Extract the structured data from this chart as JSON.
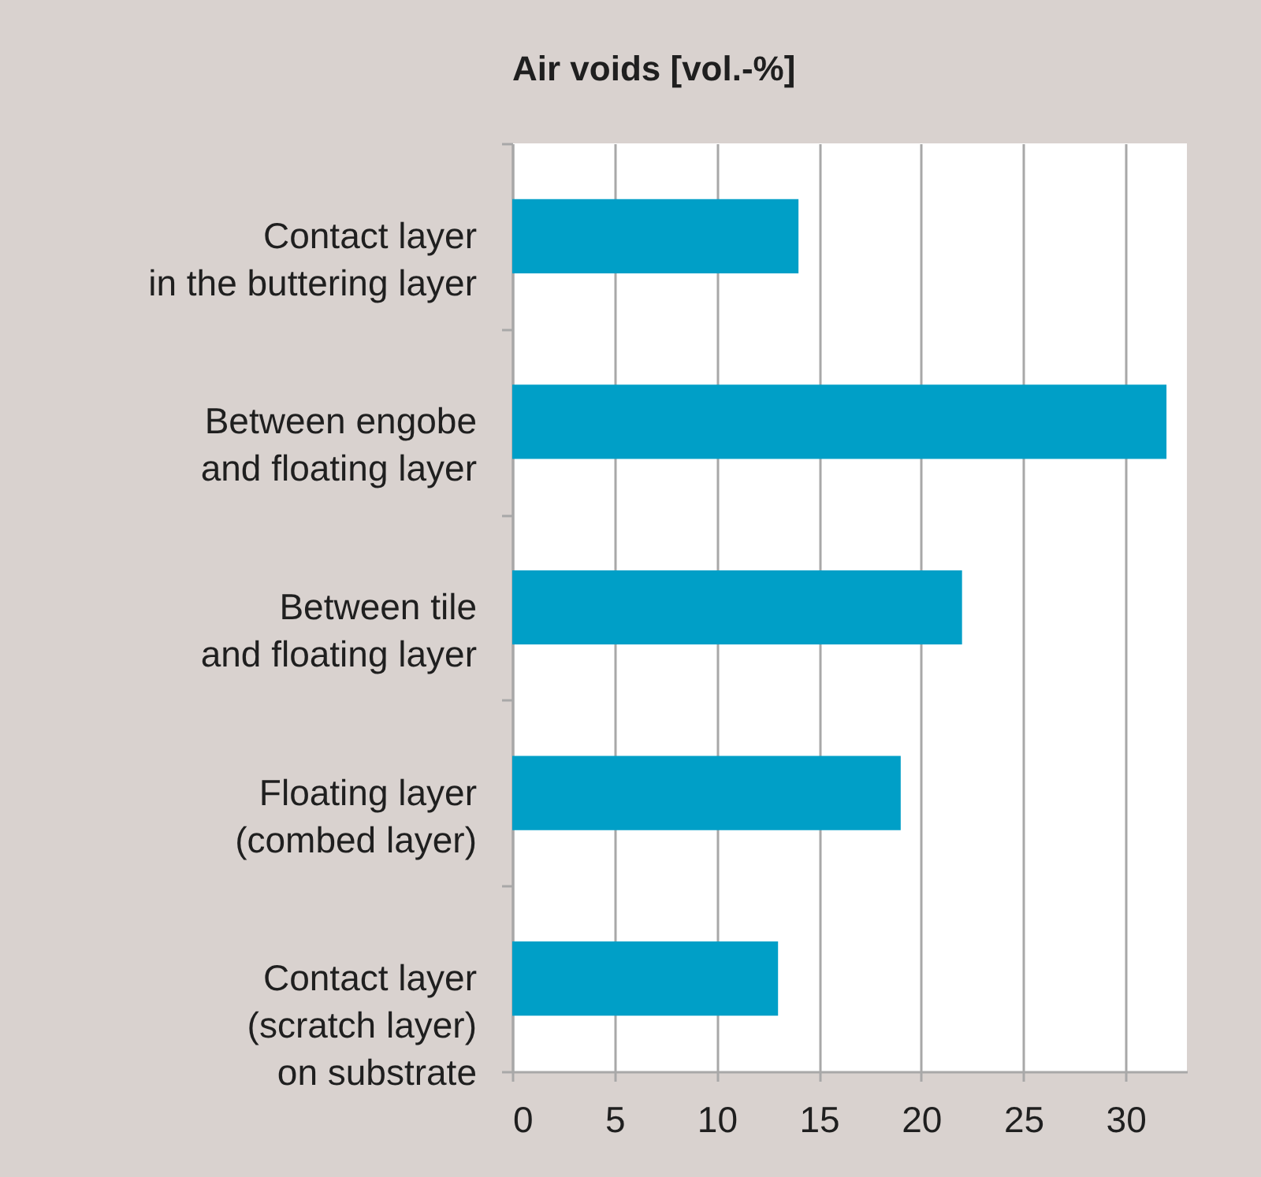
{
  "chart_data": {
    "type": "bar",
    "orientation": "horizontal",
    "title": "Air voids [vol.-%]",
    "categories": [
      "Contact layer\nin the buttering layer",
      "Between engobe\nand floating layer",
      "Between tile\nand floating layer",
      "Floating layer\n(combed layer)",
      "Contact layer\n(scratch layer)\non substrate"
    ],
    "values": [
      14,
      32,
      22,
      19,
      13
    ],
    "color": "#009fc7",
    "xlim": [
      0,
      33
    ],
    "xticks": [
      0,
      5,
      10,
      15,
      20,
      25,
      30
    ],
    "grid": "x"
  }
}
